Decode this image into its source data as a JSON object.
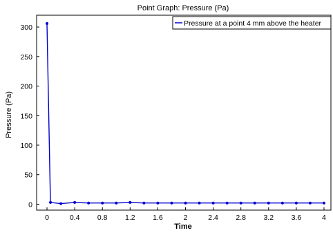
{
  "chart_data": {
    "type": "line",
    "title": "Point Graph: Pressure (Pa)",
    "xlabel": "Time",
    "ylabel": "Pressure (Pa)",
    "xlim": [
      -0.15,
      4.1
    ],
    "ylim": [
      -10,
      320
    ],
    "x_ticks": [
      "0",
      "0.4",
      "0.8",
      "1.2",
      "1.6",
      "2",
      "2.4",
      "2.8",
      "3.2",
      "3.6",
      "4"
    ],
    "y_ticks": [
      "0",
      "50",
      "100",
      "150",
      "200",
      "250",
      "300"
    ],
    "grid": true,
    "legend_position": "top-right",
    "series": [
      {
        "name": "Pressure at a point 4 mm above the heater",
        "color": "#0000cc",
        "x": [
          0,
          0.05,
          0.2,
          0.4,
          0.6,
          0.8,
          1.0,
          1.2,
          1.4,
          1.6,
          1.8,
          2.0,
          2.2,
          2.4,
          2.6,
          2.8,
          3.0,
          3.2,
          3.4,
          3.6,
          3.8,
          4.0
        ],
        "y": [
          306,
          3,
          1,
          3,
          2,
          2,
          2,
          3,
          2,
          2,
          2,
          2,
          2,
          2,
          2,
          2,
          2,
          2,
          2,
          2,
          2,
          2
        ]
      }
    ]
  }
}
